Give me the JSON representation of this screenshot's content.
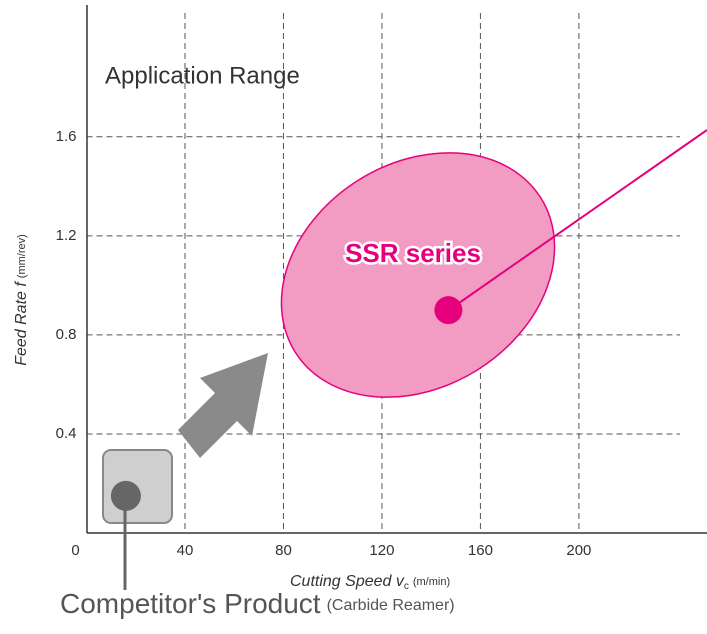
{
  "chart_data": {
    "type": "scatter",
    "title": "Application Range",
    "x_label": {
      "text": "Cutting Speed v",
      "subscript": "c",
      "unit": "(m/min)"
    },
    "y_label": {
      "text": "Feed Rate f",
      "unit": "(mm/rev)"
    },
    "xlim": [
      0,
      250
    ],
    "ylim": [
      0,
      2.1
    ],
    "xticks": [
      0,
      40,
      80,
      120,
      160,
      200
    ],
    "yticks": [
      0.4,
      0.8,
      1.2,
      1.6
    ],
    "grid": true,
    "series": [
      {
        "name": "SSR series",
        "color": "#e6007e",
        "x": [
          147
        ],
        "values": [
          0.9
        ]
      },
      {
        "name": "Competitor's Product",
        "note": "(Carbide Reamer)",
        "color": "#666666",
        "x": [
          16
        ],
        "values": [
          0.15
        ]
      }
    ]
  }
}
